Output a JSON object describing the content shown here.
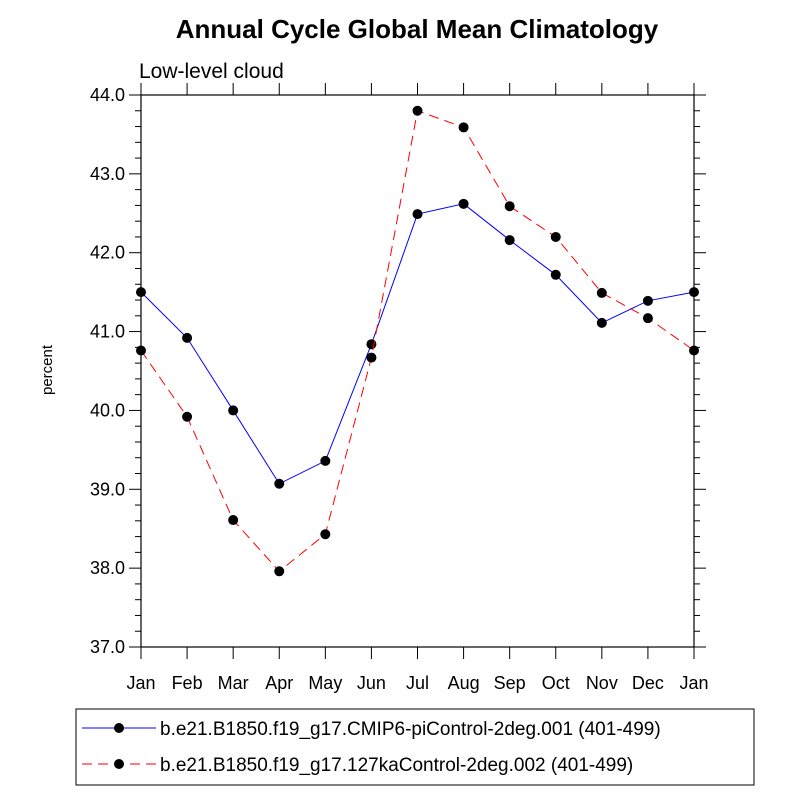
{
  "chart_data": {
    "type": "line",
    "title": "Annual Cycle Global Mean Climatology",
    "subtitle": "Low-level cloud",
    "xlabel": "",
    "ylabel": "percent",
    "categories": [
      "Jan",
      "Feb",
      "Mar",
      "Apr",
      "May",
      "Jun",
      "Jul",
      "Aug",
      "Sep",
      "Oct",
      "Nov",
      "Dec",
      "Jan"
    ],
    "ylim": [
      37.0,
      44.0
    ],
    "yticks": [
      "37.0",
      "38.0",
      "39.0",
      "40.0",
      "41.0",
      "42.0",
      "43.0",
      "44.0"
    ],
    "grid": false,
    "legend_position": "bottom",
    "series": [
      {
        "name": "b.e21.B1850.f19_g17.CMIP6-piControl-2deg.001 (401-499)",
        "color": "#0000ff",
        "line_style": "solid",
        "marker": "circle",
        "values": [
          41.5,
          40.92,
          40.0,
          39.07,
          39.36,
          40.84,
          42.49,
          42.62,
          42.16,
          41.72,
          41.11,
          41.39,
          41.5
        ]
      },
      {
        "name": "b.e21.B1850.f19_g17.127kaControl-2deg.002 (401-499)",
        "color": "#ff0000",
        "line_style": "dashed",
        "marker": "circle",
        "values": [
          40.76,
          39.92,
          38.61,
          37.96,
          38.43,
          40.67,
          43.8,
          43.59,
          42.59,
          42.2,
          41.49,
          41.17,
          40.76
        ]
      }
    ]
  }
}
